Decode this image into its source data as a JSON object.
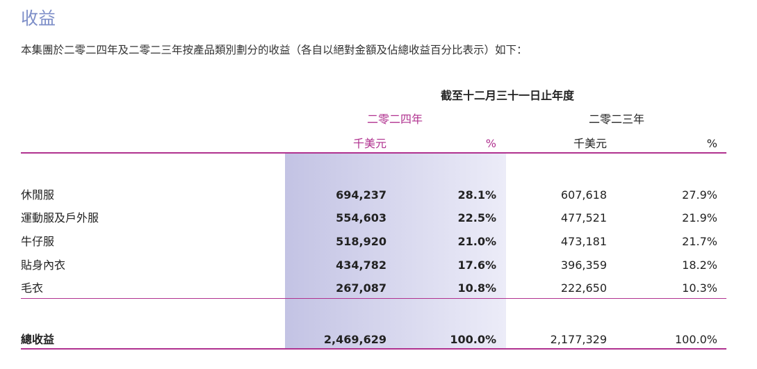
{
  "header": {
    "title": "收益",
    "intro": "本集團於二零二四年及二零二三年按產品類別劃分的收益（各自以絕對金額及佔總收益百分比表示）如下："
  },
  "table": {
    "period": "截至十二月三十一日止年度",
    "years": [
      "二零二四年",
      "二零二三年"
    ],
    "units": [
      "千美元",
      "%",
      "千美元",
      "%"
    ],
    "rows": [
      [
        "休閒服",
        "694,237",
        "28.1%",
        "607,618",
        "27.9%"
      ],
      [
        "運動服及戶外服",
        "554,603",
        "22.5%",
        "477,521",
        "21.9%"
      ],
      [
        "牛仔服",
        "518,920",
        "21.0%",
        "473,181",
        "21.7%"
      ],
      [
        "貼身內衣",
        "434,782",
        "17.6%",
        "396,359",
        "18.2%"
      ],
      [
        "毛衣",
        "267,087",
        "10.8%",
        "222,650",
        "10.3%"
      ]
    ],
    "total": [
      "總收益",
      "2,469,629",
      "100.0%",
      "2,177,329",
      "100.0%"
    ]
  }
}
